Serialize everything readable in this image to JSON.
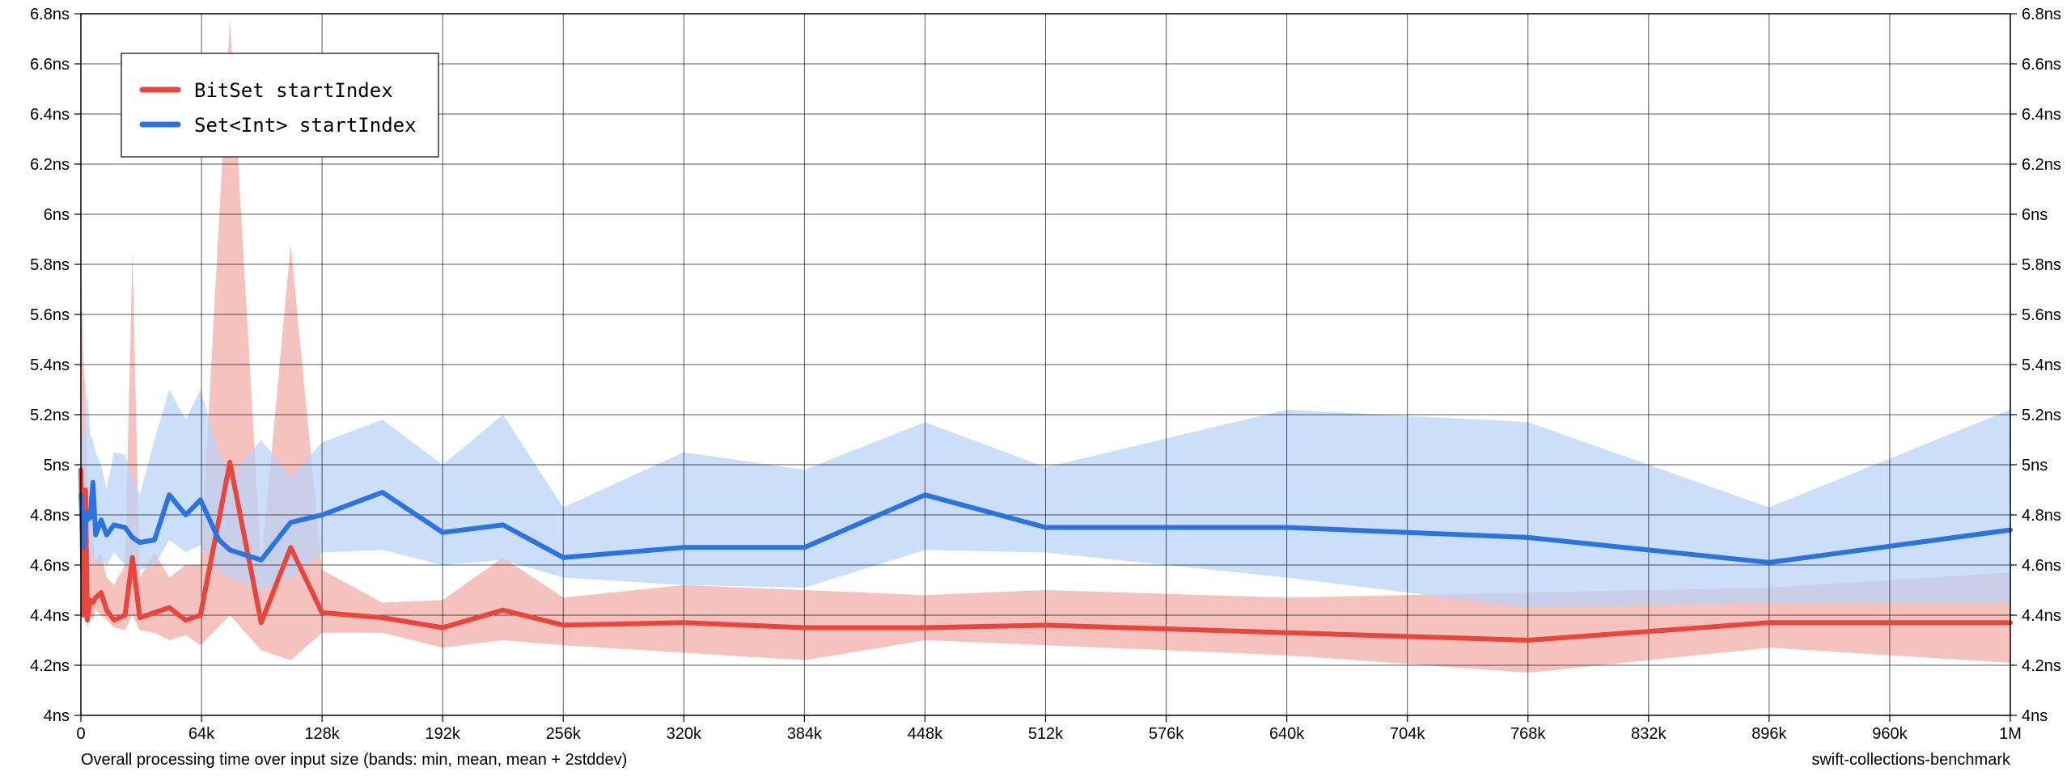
{
  "chart_data": {
    "type": "line",
    "caption": "Overall processing time over input size (bands: min, mean, mean + 2stddev)",
    "source_label": "swift-collections-benchmark",
    "xlim": [
      0,
      1048576
    ],
    "ylim": [
      4.0,
      6.8
    ],
    "grid": true,
    "legend_position": "top-left",
    "x_ticks": [
      {
        "value": 0,
        "label": "0"
      },
      {
        "value": 65536,
        "label": "64k"
      },
      {
        "value": 131072,
        "label": "128k"
      },
      {
        "value": 196608,
        "label": "192k"
      },
      {
        "value": 262144,
        "label": "256k"
      },
      {
        "value": 327680,
        "label": "320k"
      },
      {
        "value": 393216,
        "label": "384k"
      },
      {
        "value": 458752,
        "label": "448k"
      },
      {
        "value": 524288,
        "label": "512k"
      },
      {
        "value": 589824,
        "label": "576k"
      },
      {
        "value": 655360,
        "label": "640k"
      },
      {
        "value": 720896,
        "label": "704k"
      },
      {
        "value": 786432,
        "label": "768k"
      },
      {
        "value": 851968,
        "label": "832k"
      },
      {
        "value": 917504,
        "label": "896k"
      },
      {
        "value": 983040,
        "label": "960k"
      },
      {
        "value": 1048576,
        "label": "1M"
      }
    ],
    "y_ticks": [
      {
        "value": 4.0,
        "label": "4ns"
      },
      {
        "value": 4.2,
        "label": "4.2ns"
      },
      {
        "value": 4.4,
        "label": "4.4ns"
      },
      {
        "value": 4.6,
        "label": "4.6ns"
      },
      {
        "value": 4.8,
        "label": "4.8ns"
      },
      {
        "value": 5.0,
        "label": "5ns"
      },
      {
        "value": 5.2,
        "label": "5.2ns"
      },
      {
        "value": 5.4,
        "label": "5.4ns"
      },
      {
        "value": 5.6,
        "label": "5.6ns"
      },
      {
        "value": 5.8,
        "label": "5.8ns"
      },
      {
        "value": 6.0,
        "label": "6ns"
      },
      {
        "value": 6.2,
        "label": "6.2ns"
      },
      {
        "value": 6.4,
        "label": "6.4ns"
      },
      {
        "value": 6.6,
        "label": "6.6ns"
      },
      {
        "value": 6.8,
        "label": "6.8ns"
      }
    ],
    "series": [
      {
        "name": "BitSet startIndex",
        "color": "#e8453c",
        "band_color": "#f5b7b2",
        "points": [
          [
            1,
            4.98,
            4.45,
            5.8
          ],
          [
            1500,
            4.4,
            4.38,
            5.4
          ],
          [
            2500,
            4.9,
            4.6,
            5.3
          ],
          [
            3500,
            4.38,
            4.35,
            4.95
          ],
          [
            5000,
            4.46,
            4.4,
            4.8
          ],
          [
            6500,
            4.45,
            4.38,
            4.7
          ],
          [
            8000,
            4.47,
            4.42,
            4.62
          ],
          [
            11000,
            4.49,
            4.4,
            4.65
          ],
          [
            14000,
            4.42,
            4.38,
            4.55
          ],
          [
            18000,
            4.38,
            4.35,
            4.52
          ],
          [
            24000,
            4.4,
            4.34,
            4.6
          ],
          [
            28000,
            4.63,
            4.4,
            5.85
          ],
          [
            32000,
            4.39,
            4.34,
            4.55
          ],
          [
            40000,
            4.41,
            4.33,
            4.65
          ],
          [
            48000,
            4.43,
            4.3,
            4.55
          ],
          [
            57000,
            4.38,
            4.32,
            4.6
          ],
          [
            65000,
            4.4,
            4.28,
            4.6
          ],
          [
            81000,
            5.01,
            4.4,
            6.78
          ],
          [
            98000,
            4.37,
            4.26,
            4.6
          ],
          [
            114000,
            4.67,
            4.22,
            5.88
          ],
          [
            131072,
            4.41,
            4.33,
            4.58
          ],
          [
            163840,
            4.39,
            4.33,
            4.45
          ],
          [
            196608,
            4.35,
            4.27,
            4.46
          ],
          [
            229376,
            4.42,
            4.3,
            4.63
          ],
          [
            262144,
            4.36,
            4.28,
            4.47
          ],
          [
            327680,
            4.37,
            4.25,
            4.52
          ],
          [
            393216,
            4.35,
            4.22,
            4.5
          ],
          [
            458752,
            4.35,
            4.3,
            4.48
          ],
          [
            524288,
            4.36,
            4.28,
            4.5
          ],
          [
            655360,
            4.33,
            4.24,
            4.47
          ],
          [
            786432,
            4.3,
            4.17,
            4.49
          ],
          [
            917504,
            4.37,
            4.27,
            4.51
          ],
          [
            1048576,
            4.37,
            4.21,
            4.57
          ]
        ]
      },
      {
        "name": "Set<Int> startIndex",
        "color": "#2b73e0",
        "band_color": "#bad3f8",
        "points": [
          [
            1,
            4.88,
            4.55,
            5.15
          ],
          [
            1500,
            4.67,
            4.45,
            5.1
          ],
          [
            2500,
            4.81,
            4.56,
            5.2
          ],
          [
            3500,
            4.78,
            4.58,
            5.3
          ],
          [
            5000,
            4.79,
            4.6,
            5.12
          ],
          [
            6500,
            4.93,
            4.65,
            5.1
          ],
          [
            8000,
            4.72,
            4.6,
            5.05
          ],
          [
            11000,
            4.78,
            4.62,
            5.0
          ],
          [
            14000,
            4.72,
            4.6,
            4.9
          ],
          [
            18000,
            4.76,
            4.65,
            5.05
          ],
          [
            24000,
            4.75,
            4.6,
            5.04
          ],
          [
            28000,
            4.71,
            4.6,
            4.95
          ],
          [
            32000,
            4.69,
            4.58,
            4.88
          ],
          [
            40000,
            4.7,
            4.6,
            5.1
          ],
          [
            48000,
            4.88,
            4.7,
            5.3
          ],
          [
            57000,
            4.8,
            4.65,
            5.18
          ],
          [
            65000,
            4.86,
            4.68,
            5.3
          ],
          [
            75000,
            4.7,
            4.58,
            5.05
          ],
          [
            81000,
            4.66,
            4.55,
            4.95
          ],
          [
            98000,
            4.62,
            4.5,
            5.1
          ],
          [
            114000,
            4.77,
            4.55,
            4.95
          ],
          [
            131072,
            4.8,
            4.65,
            5.09
          ],
          [
            163840,
            4.89,
            4.66,
            5.18
          ],
          [
            196608,
            4.73,
            4.6,
            5.0
          ],
          [
            229376,
            4.76,
            4.62,
            5.2
          ],
          [
            262144,
            4.63,
            4.55,
            4.83
          ],
          [
            327680,
            4.67,
            4.52,
            5.05
          ],
          [
            393216,
            4.67,
            4.51,
            4.98
          ],
          [
            458752,
            4.88,
            4.66,
            5.17
          ],
          [
            524288,
            4.75,
            4.65,
            4.99
          ],
          [
            655360,
            4.75,
            4.55,
            5.22
          ],
          [
            786432,
            4.71,
            4.43,
            5.17
          ],
          [
            917504,
            4.61,
            4.45,
            4.83
          ],
          [
            1048576,
            4.74,
            4.45,
            5.22
          ]
        ]
      }
    ]
  }
}
